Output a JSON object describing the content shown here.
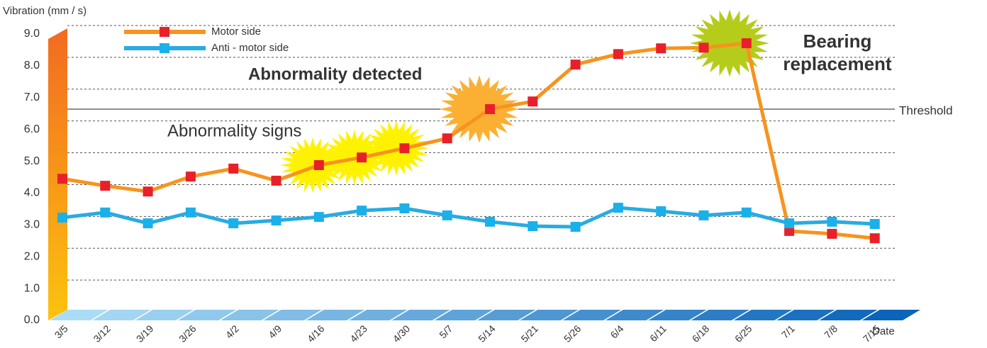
{
  "chart_data": {
    "type": "line",
    "y_label": "Vibration (mm / s)",
    "x_label": "Date",
    "categories": [
      "3/5",
      "3/12",
      "3/19",
      "3/26",
      "4/2",
      "4/9",
      "4/16",
      "4/23",
      "4/30",
      "5/7",
      "5/14",
      "5/21",
      "5/26",
      "6/4",
      "6/11",
      "6/18",
      "6/25",
      "7/1",
      "7/8",
      "7/15"
    ],
    "series": [
      {
        "name": "Motor side",
        "color": "#f7931e",
        "marker_color": "#e8202a",
        "values": [
          4.45,
          4.23,
          4.05,
          4.52,
          4.77,
          4.39,
          4.88,
          5.12,
          5.41,
          5.72,
          6.64,
          6.88,
          8.04,
          8.37,
          8.55,
          8.57,
          8.71,
          2.81,
          2.72,
          2.58
        ]
      },
      {
        "name": "Anti - motor side",
        "color": "#29abe2",
        "marker_color": "#1ab0ea",
        "values": [
          3.23,
          3.39,
          3.05,
          3.39,
          3.05,
          3.14,
          3.25,
          3.45,
          3.52,
          3.3,
          3.1,
          2.96,
          2.94,
          3.54,
          3.43,
          3.3,
          3.39,
          3.05,
          3.1,
          3.03
        ]
      }
    ],
    "threshold": {
      "value": 6.64,
      "label": "Threshold"
    },
    "annotations": [
      {
        "text": "Abnormality signs",
        "color": "#f7931e"
      },
      {
        "text": "Abnormality detected",
        "color": "#e8202a"
      },
      {
        "text": [
          "Bearing",
          "replacement"
        ],
        "color": "#4cb848"
      }
    ],
    "ylim": [
      0,
      9
    ],
    "yticks": [
      {
        "value": 0,
        "label": "0.0"
      },
      {
        "value": 1,
        "label": "1.0"
      },
      {
        "value": 2,
        "label": "2.0"
      },
      {
        "value": 3,
        "label": "3.0"
      },
      {
        "value": 4,
        "label": "4.0"
      },
      {
        "value": 5,
        "label": "5.0"
      },
      {
        "value": 6,
        "label": "6.0"
      },
      {
        "value": 7,
        "label": "7.0"
      },
      {
        "value": 8,
        "label": "8.0"
      },
      {
        "value": 9,
        "label": "9.0"
      }
    ],
    "grid": true
  }
}
